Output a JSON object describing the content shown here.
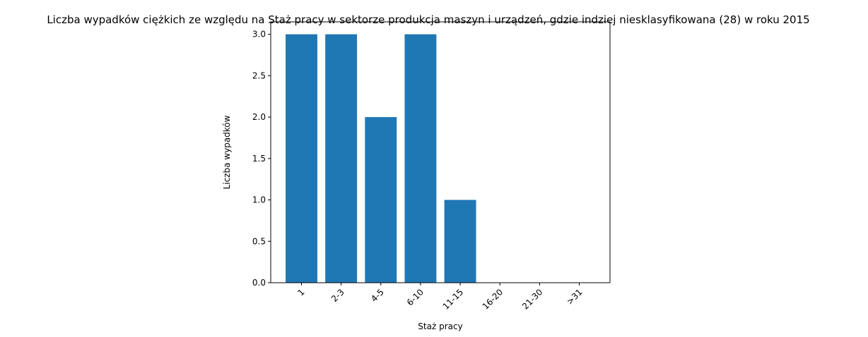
{
  "chart_data": {
    "type": "bar",
    "title": "Liczba wypadków ciężkich ze względu na Staż pracy w sektorze produkcja maszyn i urządzeń, gdzie indziej niesklasyfikowana (28)  w roku 2015",
    "xlabel": "Staż pracy",
    "ylabel": "Liczba wypadków",
    "categories": [
      "1",
      "2-3",
      "4-5",
      "6-10",
      "11-15",
      "16-20",
      "21-30",
      ">31"
    ],
    "values": [
      3,
      3,
      2,
      3,
      1,
      0,
      0,
      0
    ],
    "ylim": [
      0,
      3.15
    ],
    "yticks": [
      "0.0",
      "0.5",
      "1.0",
      "1.5",
      "2.0",
      "2.5",
      "3.0"
    ],
    "bar_color": "#1f77b4",
    "grid": false,
    "xtick_rotation_deg": 45
  }
}
